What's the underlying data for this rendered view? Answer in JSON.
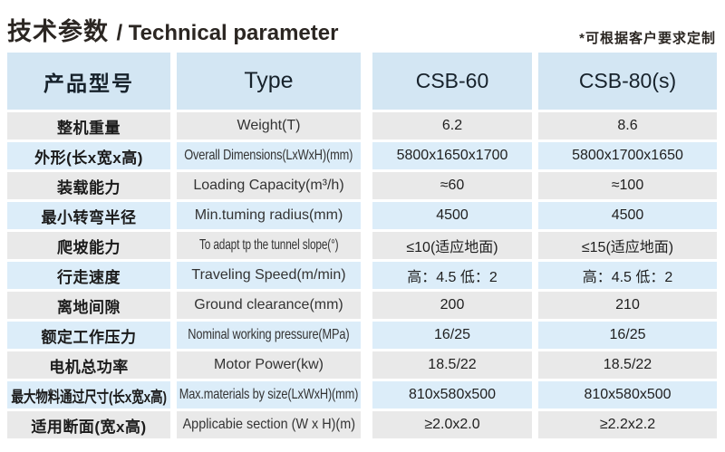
{
  "header_bar": {
    "title_zh": "技术参数",
    "title_en": "/ Technical parameter",
    "note": "*可根据客户要求定制"
  },
  "table": {
    "columns": {
      "product_model": "产品型号",
      "type": "Type",
      "model_a": "CSB-60",
      "model_b": "CSB-80(s)"
    },
    "rows": [
      {
        "zh": "整机重量",
        "en": "Weight(T)",
        "csb60": "6.2",
        "csb80": "8.6"
      },
      {
        "zh": "外形(长x宽x高)",
        "en": "Overall Dimensions(LxWxH)(mm)",
        "csb60": "5800x1650x1700",
        "csb80": "5800x1700x1650"
      },
      {
        "zh": "装载能力",
        "en": "Loading Capacity(m³/h)",
        "csb60": "≈60",
        "csb80": "≈100"
      },
      {
        "zh": "最小转弯半径",
        "en": "Min.tuming radius(mm)",
        "csb60": "4500",
        "csb80": "4500"
      },
      {
        "zh": "爬坡能力",
        "en": "To adapt tp the tunnel slope(°)",
        "csb60": "≤10(适应地面)",
        "csb80": "≤15(适应地面)"
      },
      {
        "zh": "行走速度",
        "en": "Traveling Speed(m/min)",
        "csb60": "高：4.5 低：2",
        "csb80": "高：4.5 低：2"
      },
      {
        "zh": "离地间隙",
        "en": "Ground clearance(mm)",
        "csb60": "200",
        "csb80": "210"
      },
      {
        "zh": "额定工作压力",
        "en": "Nominal working pressure(MPa)",
        "csb60": "16/25",
        "csb80": "16/25"
      },
      {
        "zh": "电机总功率",
        "en": "Motor Power(kw)",
        "csb60": "18.5/22",
        "csb80": "18.5/22"
      },
      {
        "zh": "最大物料通过尺寸(长x宽x高)",
        "en": "Max.materials by size(LxWxH)(mm)",
        "csb60": "810x580x500",
        "csb80": "810x580x500"
      },
      {
        "zh": "适用断面(宽x高)",
        "en": "Applicabie section (W x H)(m)",
        "csb60": "≥2.0x2.0",
        "csb80": "≥2.2x2.2"
      }
    ]
  },
  "colors": {
    "header_cell_bg": "#d3e6f3",
    "row_gray_bg": "#e9e9e9",
    "row_blue_bg": "#dcedf9",
    "title_text": "#2b2622",
    "cell_text": "#1f1f1f"
  }
}
